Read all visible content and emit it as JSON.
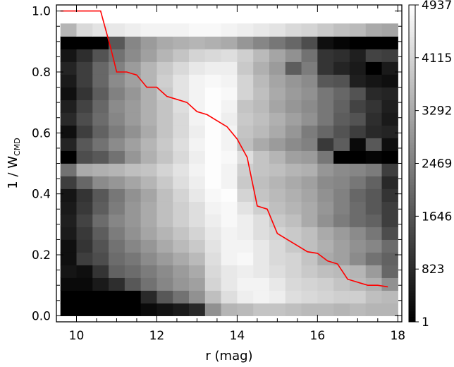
{
  "chart_data": {
    "type": "heatmap",
    "title": "",
    "xlabel": "r (mag)",
    "ylabel": {
      "prefix": "1 / W",
      "subscript": "CMD"
    },
    "xlim": [
      9.5,
      18.1
    ],
    "ylim": [
      -0.02,
      1.02
    ],
    "x_ticks": [
      "10",
      "12",
      "14",
      "16",
      "18"
    ],
    "x_tick_values": [
      10,
      12,
      14,
      16,
      18
    ],
    "y_ticks": [
      "0.0",
      "0.2",
      "0.4",
      "0.6",
      "0.8",
      "1.0"
    ],
    "y_tick_values": [
      0.0,
      0.2,
      0.4,
      0.6,
      0.8,
      1.0
    ],
    "grid": false,
    "colorbar": {
      "ticks": [
        "1",
        "823",
        "1646",
        "2469",
        "3292",
        "4115",
        "4937"
      ],
      "tick_values": [
        1,
        823,
        1646,
        2469,
        3292,
        4115,
        4937
      ],
      "min": 1,
      "max": 4937,
      "colormap": "grayscale"
    },
    "heatmap": {
      "x_edges_start": 9.6,
      "x_bin_width": 0.4,
      "y_edges_start": 0.0,
      "y_bin_width": 0.0417,
      "rows_bottom_to_top": [
        [
          5,
          5,
          5,
          5,
          5,
          200,
          350,
          500,
          800,
          2800,
          3500,
          3600,
          3800,
          3800,
          3700,
          3600,
          3600,
          3500,
          3600,
          3500,
          3500
        ],
        [
          5,
          5,
          5,
          5,
          5,
          800,
          1700,
          2200,
          2800,
          3700,
          4300,
          4600,
          4700,
          4600,
          4300,
          4200,
          4100,
          4000,
          4000,
          3700,
          3600
        ],
        [
          200,
          200,
          500,
          900,
          1700,
          2200,
          2600,
          2900,
          3100,
          4100,
          4500,
          4700,
          4700,
          4500,
          4200,
          4100,
          4000,
          3800,
          3600,
          3400,
          2800
        ],
        [
          400,
          300,
          1000,
          1900,
          2100,
          2400,
          2700,
          3000,
          3300,
          4200,
          4500,
          4600,
          4500,
          4300,
          4100,
          3900,
          3700,
          3600,
          3500,
          3000,
          2000
        ],
        [
          300,
          1200,
          1500,
          2100,
          2300,
          2700,
          3000,
          3300,
          3600,
          4300,
          4700,
          4800,
          4500,
          4200,
          4100,
          3800,
          3300,
          3100,
          2700,
          2200,
          1900
        ],
        [
          300,
          1000,
          1600,
          2200,
          2600,
          2900,
          3300,
          3600,
          3900,
          4400,
          4700,
          4700,
          4500,
          4200,
          3900,
          3700,
          3400,
          3100,
          2800,
          2600,
          2100
        ],
        [
          500,
          1100,
          1800,
          2400,
          2800,
          3200,
          3500,
          3800,
          4100,
          4500,
          4700,
          4600,
          4300,
          4100,
          3900,
          3700,
          3300,
          3000,
          2700,
          2300,
          1500
        ],
        [
          600,
          1300,
          2100,
          2600,
          2900,
          3300,
          3700,
          4000,
          4300,
          4600,
          4800,
          4600,
          4300,
          3900,
          3700,
          3300,
          2800,
          2400,
          2100,
          1900,
          1200
        ],
        [
          500,
          1100,
          1800,
          2400,
          2900,
          3300,
          3700,
          4000,
          4300,
          4700,
          4800,
          4400,
          4000,
          3700,
          3500,
          3300,
          2900,
          2500,
          2100,
          1700,
          1200
        ],
        [
          400,
          1000,
          1700,
          2300,
          2800,
          3200,
          3700,
          4100,
          4500,
          4800,
          4900,
          4100,
          3800,
          3600,
          3400,
          3200,
          2800,
          2500,
          2000,
          1700,
          1000
        ],
        [
          1200,
          2000,
          2700,
          2900,
          3200,
          3500,
          3900,
          4300,
          4600,
          4900,
          4700,
          3900,
          3700,
          3500,
          3300,
          3100,
          2700,
          2600,
          2300,
          1900,
          800
        ],
        [
          2200,
          3300,
          3400,
          3500,
          3700,
          3800,
          4100,
          4400,
          4700,
          4900,
          4700,
          4000,
          3800,
          3700,
          3500,
          3400,
          2900,
          2700,
          2600,
          2400,
          1200
        ],
        [
          10,
          1500,
          1700,
          2200,
          2900,
          3400,
          3800,
          4200,
          4600,
          4900,
          4800,
          4300,
          3800,
          3500,
          3100,
          3000,
          2300,
          10,
          10,
          100,
          10
        ],
        [
          700,
          1700,
          2200,
          2700,
          3100,
          3500,
          3900,
          4300,
          4700,
          4900,
          4700,
          3700,
          3300,
          3000,
          2700,
          2500,
          1100,
          1800,
          200,
          1700,
          300
        ],
        [
          300,
          1200,
          1900,
          2400,
          2800,
          3300,
          3800,
          4200,
          4600,
          4900,
          4700,
          3800,
          3600,
          3300,
          2900,
          2400,
          2000,
          1600,
          1200,
          800,
          700
        ],
        [
          800,
          1500,
          2100,
          2600,
          3000,
          3400,
          3800,
          4200,
          4700,
          4900,
          4600,
          3900,
          3700,
          3400,
          3100,
          2800,
          2300,
          1800,
          1600,
          900,
          500
        ],
        [
          600,
          1300,
          2000,
          2700,
          3000,
          3400,
          3800,
          4300,
          4700,
          4900,
          4700,
          3800,
          3600,
          3200,
          2900,
          2700,
          2300,
          1900,
          1300,
          1000,
          600
        ],
        [
          300,
          1000,
          1800,
          2500,
          2900,
          3400,
          3900,
          4400,
          4700,
          4900,
          4800,
          4100,
          3700,
          3300,
          3000,
          2800,
          2300,
          2000,
          1600,
          800,
          700
        ],
        [
          500,
          1200,
          2000,
          2700,
          3100,
          3500,
          4000,
          4400,
          4700,
          4800,
          4700,
          4100,
          3600,
          3200,
          2900,
          2700,
          1700,
          1600,
          600,
          400,
          300
        ],
        [
          700,
          1200,
          2000,
          2500,
          3000,
          3500,
          3900,
          4200,
          4500,
          4600,
          4600,
          3900,
          3400,
          3000,
          1800,
          2400,
          1000,
          700,
          500,
          10,
          500
        ],
        [
          400,
          900,
          1600,
          2200,
          2700,
          3100,
          3500,
          3800,
          4100,
          4200,
          4300,
          4000,
          3600,
          3200,
          2800,
          2200,
          1000,
          900,
          600,
          1300,
          1200
        ],
        [
          10,
          10,
          10,
          1700,
          2600,
          3000,
          3300,
          3400,
          3500,
          3400,
          3300,
          2900,
          2600,
          2300,
          2000,
          1500,
          300,
          100,
          10,
          10,
          10
        ],
        [
          3500,
          4200,
          4400,
          4500,
          4600,
          4700,
          4700,
          4700,
          4800,
          4800,
          4700,
          4600,
          4500,
          4400,
          4200,
          4100,
          3900,
          3700,
          3600,
          3300,
          3200
        ]
      ]
    },
    "series": [
      {
        "color": "#ff0000",
        "x": [
          9.6,
          10.6,
          10.85,
          11.0,
          11.25,
          11.5,
          11.75,
          12.0,
          12.25,
          12.5,
          12.75,
          13.0,
          13.25,
          13.5,
          13.75,
          14.0,
          14.25,
          14.5,
          14.75,
          15.0,
          15.25,
          15.5,
          15.75,
          16.0,
          16.25,
          16.5,
          16.75,
          17.0,
          17.25,
          17.5,
          17.75
        ],
        "y": [
          1.0,
          1.0,
          0.88,
          0.8,
          0.8,
          0.79,
          0.75,
          0.75,
          0.72,
          0.71,
          0.7,
          0.67,
          0.66,
          0.64,
          0.62,
          0.58,
          0.52,
          0.36,
          0.35,
          0.27,
          0.25,
          0.23,
          0.21,
          0.205,
          0.18,
          0.17,
          0.12,
          0.11,
          0.1,
          0.1,
          0.095
        ]
      }
    ]
  }
}
